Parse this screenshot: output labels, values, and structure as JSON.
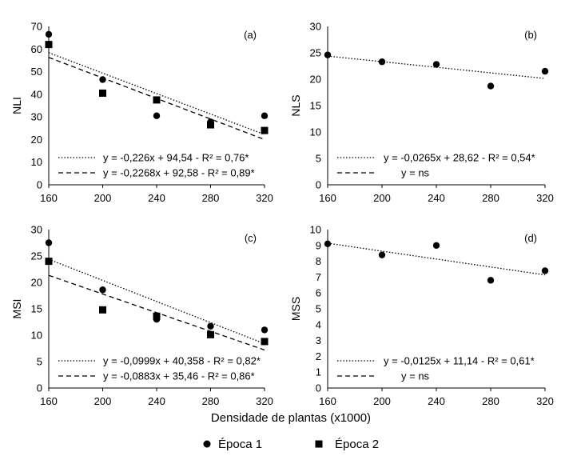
{
  "xlabel": "Densidade de plantas (x1000)",
  "legend": [
    {
      "label": "Época 1",
      "marker": "circle"
    },
    {
      "label": "Época 2",
      "marker": "square"
    }
  ],
  "chart_data": [
    {
      "type": "scatter",
      "panel_label": "(a)",
      "ylabel": "NLI",
      "x_ticks": [
        160,
        200,
        240,
        280,
        320
      ],
      "y_ticks": [
        0,
        10,
        20,
        30,
        40,
        50,
        60,
        70
      ],
      "xlim": [
        160,
        320
      ],
      "ylim": [
        0,
        70
      ],
      "series": [
        {
          "name": "Época 1",
          "marker": "circle",
          "x": [
            160,
            200,
            240,
            280,
            320
          ],
          "y": [
            66.5,
            46.5,
            30.5,
            27.8,
            30.5
          ]
        },
        {
          "name": "Época 2",
          "marker": "square",
          "x": [
            160,
            200,
            240,
            280,
            320
          ],
          "y": [
            62,
            40.5,
            37.5,
            26.5,
            24
          ]
        }
      ],
      "trendlines": [
        {
          "style": "dotted",
          "slope": -0.226,
          "intercept": 94.54,
          "label": "y = -0,226x + 94,54 - R² = 0,76*"
        },
        {
          "style": "dashed",
          "slope": -0.2268,
          "intercept": 92.58,
          "label": "y = -0,2268x + 92,58 - R² = 0,89*"
        }
      ]
    },
    {
      "type": "scatter",
      "panel_label": "(b)",
      "ylabel": "NLS",
      "x_ticks": [
        160,
        200,
        240,
        280,
        320
      ],
      "y_ticks": [
        0,
        5,
        10,
        15,
        20,
        25,
        30
      ],
      "xlim": [
        160,
        320
      ],
      "ylim": [
        0,
        30
      ],
      "series": [
        {
          "name": "Época 1",
          "marker": "circle",
          "x": [
            160,
            200,
            240,
            280,
            320
          ],
          "y": [
            24.6,
            23.3,
            22.8,
            18.7,
            21.5
          ]
        }
      ],
      "trendlines": [
        {
          "style": "dotted",
          "slope": -0.0265,
          "intercept": 28.62,
          "label": "y = -0,0265x + 28,62 - R² = 0,54*"
        },
        {
          "style": "dashed",
          "slope": null,
          "intercept": null,
          "label": "y = ns"
        }
      ]
    },
    {
      "type": "scatter",
      "panel_label": "(c)",
      "ylabel": "MSI",
      "x_ticks": [
        160,
        200,
        240,
        280,
        320
      ],
      "y_ticks": [
        0,
        5,
        10,
        15,
        20,
        25,
        30
      ],
      "xlim": [
        160,
        320
      ],
      "ylim": [
        0,
        30
      ],
      "series": [
        {
          "name": "Época 1",
          "marker": "circle",
          "x": [
            160,
            200,
            240,
            280,
            320
          ],
          "y": [
            27.5,
            18.6,
            13,
            11.7,
            11
          ]
        },
        {
          "name": "Época 2",
          "marker": "square",
          "x": [
            160,
            200,
            240,
            280,
            320
          ],
          "y": [
            24,
            14.8,
            13.6,
            10.1,
            8.8
          ]
        }
      ],
      "trendlines": [
        {
          "style": "dotted",
          "slope": -0.0999,
          "intercept": 40.358,
          "label": "y = -0,0999x + 40,358 - R² = 0,82*"
        },
        {
          "style": "dashed",
          "slope": -0.0883,
          "intercept": 35.46,
          "label": "y = -0,0883x + 35,46 - R² = 0,86*"
        }
      ]
    },
    {
      "type": "scatter",
      "panel_label": "(d)",
      "ylabel": "MSS",
      "x_ticks": [
        160,
        200,
        240,
        280,
        320
      ],
      "y_ticks": [
        0,
        1,
        2,
        3,
        4,
        5,
        6,
        7,
        8,
        9,
        10
      ],
      "xlim": [
        160,
        320
      ],
      "ylim": [
        0,
        10
      ],
      "series": [
        {
          "name": "Época 1",
          "marker": "circle",
          "x": [
            160,
            200,
            240,
            280,
            320
          ],
          "y": [
            9.1,
            8.4,
            9,
            6.8,
            7.4
          ]
        }
      ],
      "trendlines": [
        {
          "style": "dotted",
          "slope": -0.0125,
          "intercept": 11.14,
          "label": "y = -0,0125x + 11,14 - R² = 0,61*"
        },
        {
          "style": "dashed",
          "slope": null,
          "intercept": null,
          "label": "y = ns"
        }
      ]
    }
  ]
}
